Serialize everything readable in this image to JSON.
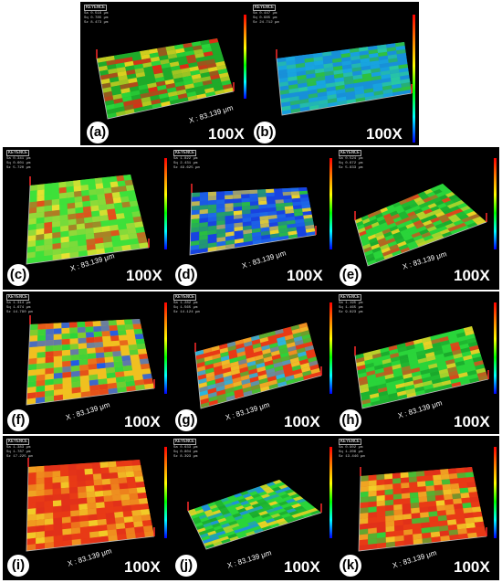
{
  "colors": {
    "background": "#000000",
    "panel_letter_bg": "#ffffff",
    "colormap": [
      "#0000ff",
      "#00ffff",
      "#00ff00",
      "#ffff00",
      "#ff8000",
      "#ff0000"
    ]
  },
  "panels": [
    {
      "id": "a",
      "letter": "(a)",
      "magnification": "100X",
      "x_label": "X : 83.139 μm",
      "stats": [
        "Sa 0.516 μm",
        "Sq 0.785 μm",
        "Sz 8.473 μm"
      ],
      "dominant_color": "green-red",
      "view": "oblique"
    },
    {
      "id": "b",
      "letter": "(b)",
      "magnification": "100X",
      "x_label": "",
      "stats": [
        "Sa 0.447 μm",
        "Sq 0.685 μm",
        "Sz 24.712 μm"
      ],
      "dominant_color": "blue-green",
      "view": "oblique"
    },
    {
      "id": "c",
      "letter": "(c)",
      "magnification": "100X",
      "x_label": "X : 83.139 μm",
      "stats": [
        "Sa 0.341 μm",
        "Sq 0.601 μm",
        "Sz 5.720 μm"
      ],
      "dominant_color": "green-yellow",
      "view": "oblique"
    },
    {
      "id": "d",
      "letter": "(d)",
      "magnification": "100X",
      "x_label": "X : 83.139 μm",
      "stats": [
        "Sa 1.822 μm",
        "Sq 2.431 μm",
        "Sz 49.625 μm"
      ],
      "dominant_color": "blue-green",
      "view": "oblique"
    },
    {
      "id": "e",
      "letter": "(e)",
      "magnification": "100X",
      "x_label": "X : 83.139 μm",
      "stats": [
        "Sa 0.524 μm",
        "Sq 0.672 μm",
        "Sz 5.833 μm"
      ],
      "dominant_color": "green-red",
      "view": "oblique"
    },
    {
      "id": "f",
      "letter": "(f)",
      "magnification": "100X",
      "x_label": "X : 83.139 μm",
      "stats": [
        "Sa 1.314 μm",
        "Sq 1.674 μm",
        "Sz 14.790 μm"
      ],
      "dominant_color": "yellow-green",
      "view": "oblique"
    },
    {
      "id": "g",
      "letter": "(g)",
      "magnification": "100X",
      "x_label": "X : 83.139 μm",
      "stats": [
        "Sa 1.282 μm",
        "Sq 1.565 μm",
        "Sz 14.124 μm"
      ],
      "dominant_color": "green-red",
      "view": "oblique"
    },
    {
      "id": "h",
      "letter": "(h)",
      "magnification": "100X",
      "x_label": "X : 83.139 μm",
      "stats": [
        "Sa 1.195 μm",
        "Sq 1.465 μm",
        "Sz 9.823 μm"
      ],
      "dominant_color": "green-red",
      "view": "oblique"
    },
    {
      "id": "i",
      "letter": "(i)",
      "magnification": "100X",
      "x_label": "X : 83.139 μm",
      "stats": [
        "Sa 1.383 μm",
        "Sq 1.787 μm",
        "Sz 17.225 μm"
      ],
      "dominant_color": "red-yellow",
      "view": "oblique"
    },
    {
      "id": "j",
      "letter": "(j)",
      "magnification": "100X",
      "x_label": "X : 83.139 μm",
      "stats": [
        "Sa 0.633 μm",
        "Sq 0.804 μm",
        "Sz 8.393 μm"
      ],
      "dominant_color": "green-yellow",
      "view": "oblique"
    },
    {
      "id": "k",
      "letter": "(k)",
      "magnification": "100X",
      "x_label": "X : 83.139 μm",
      "stats": [
        "Sa 0.902 μm",
        "Sq 1.206 μm",
        "Sz 13.446 μm"
      ],
      "dominant_color": "red-green",
      "view": "oblique"
    }
  ]
}
